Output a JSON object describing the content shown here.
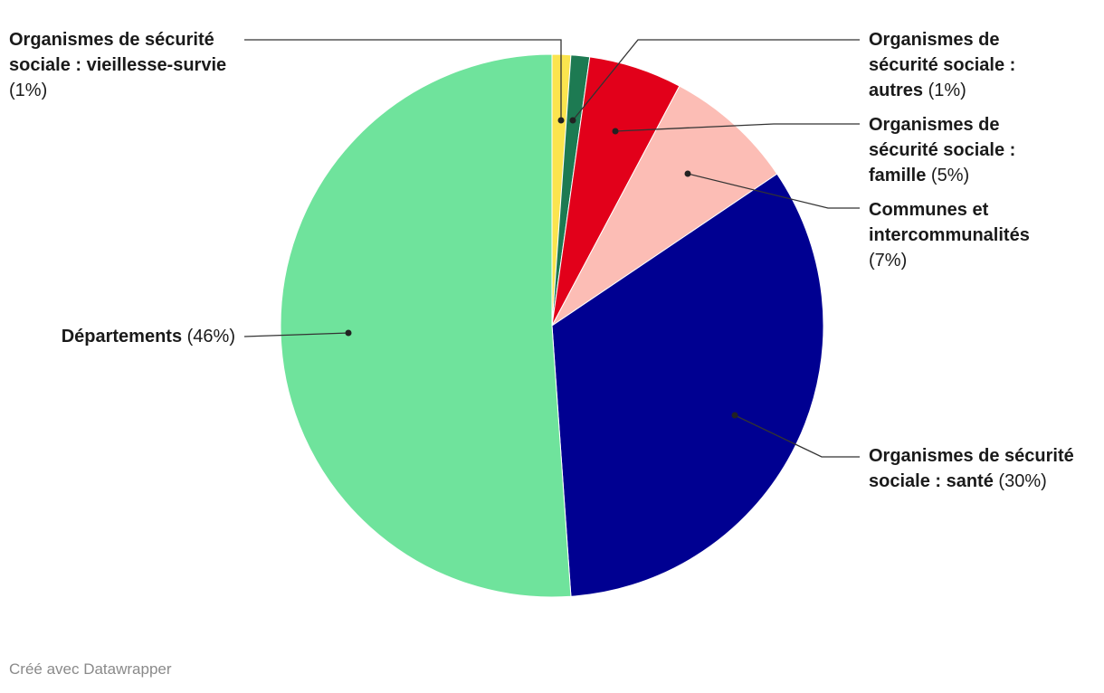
{
  "chart_data": {
    "type": "pie",
    "categories": [
      "Organismes de sécurité sociale : vieillesse-survie",
      "Organismes de sécurité sociale : autres",
      "Organismes de sécurité sociale : famille",
      "Communes et intercommunalités",
      "Organismes de sécurité sociale : santé",
      "Départements"
    ],
    "values": [
      1,
      1,
      5,
      7,
      30,
      46
    ],
    "value_labels": [
      "(1%)",
      "(1%)",
      "(5%)",
      "(7%)",
      "(30%)",
      "(46%)"
    ],
    "colors": [
      "#fbe44e",
      "#1d7a52",
      "#e2001a",
      "#fcbdb5",
      "#000091",
      "#6fe39c"
    ],
    "footer": "Créé avec Datawrapper"
  }
}
